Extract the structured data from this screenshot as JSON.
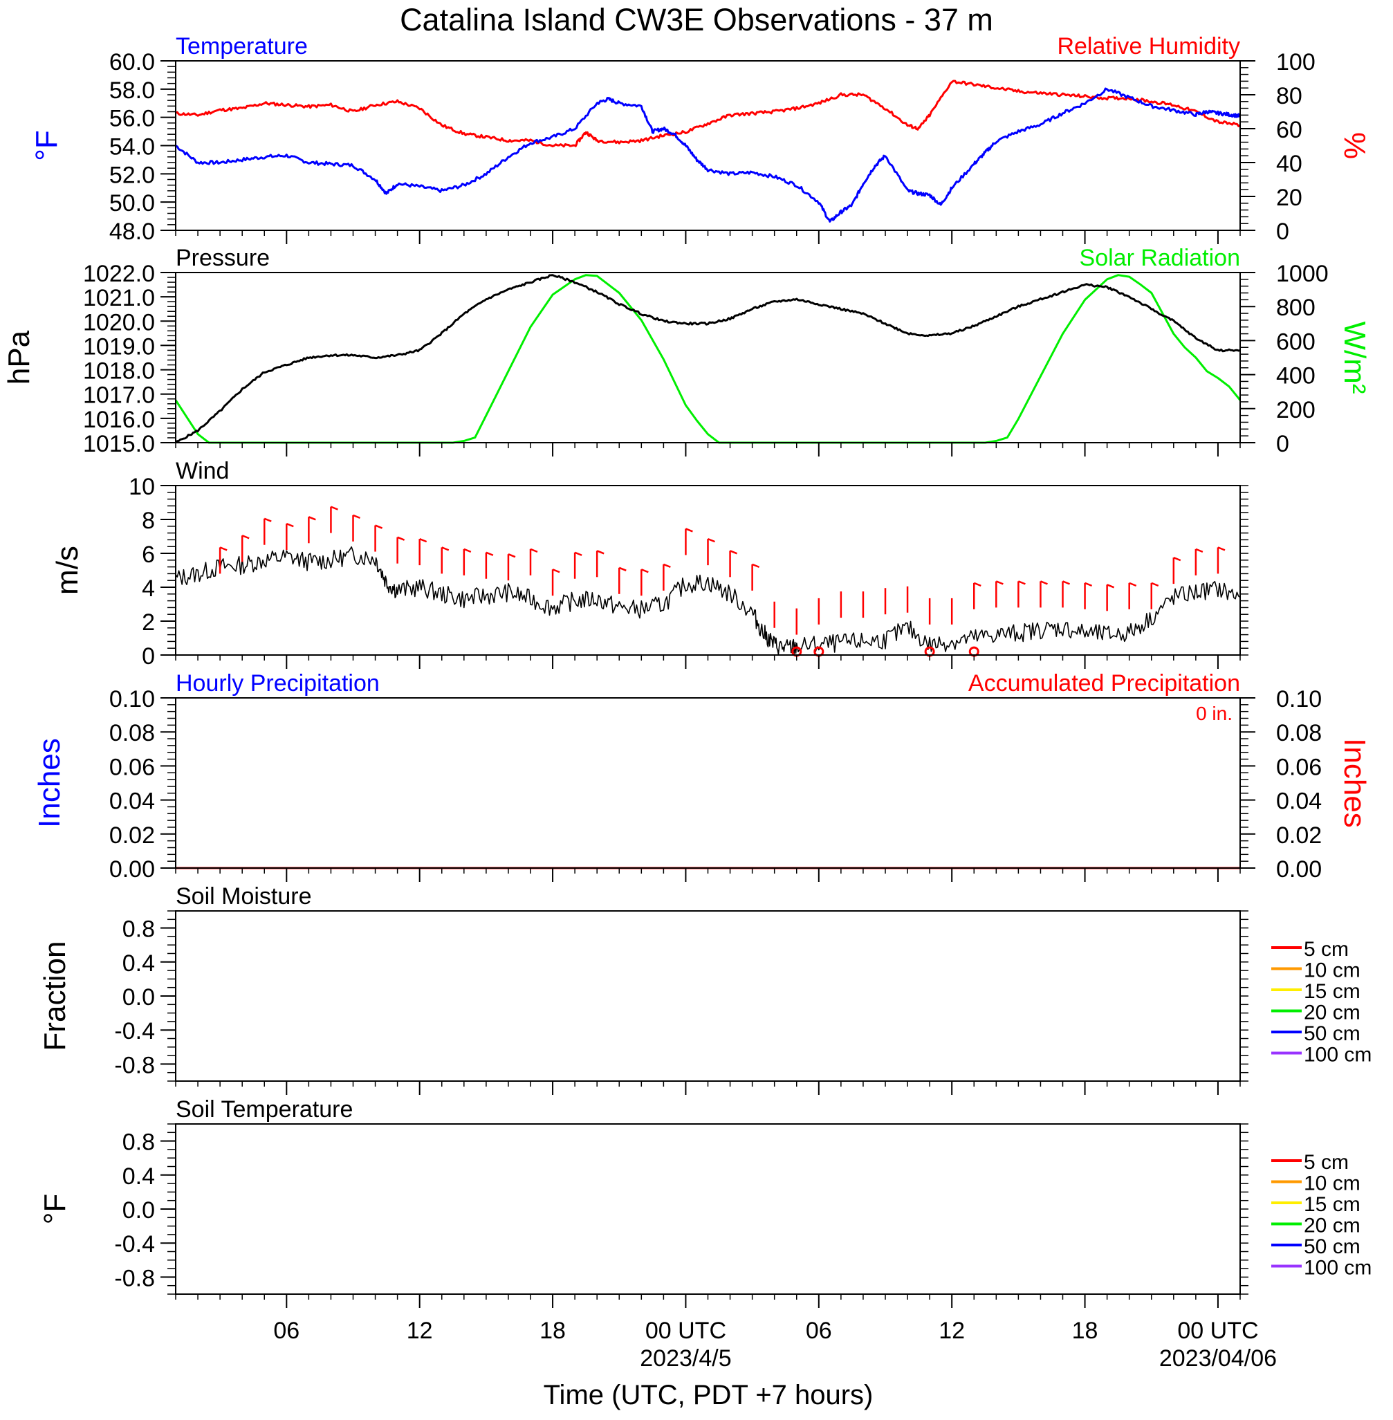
{
  "title": "Catalina Island CW3E Observations - 37 m",
  "x_axis": {
    "label": "Time (UTC, PDT +7 hours)",
    "range_hours": [
      0,
      48
    ],
    "ticks": [
      {
        "h": 5,
        "label": "06"
      },
      {
        "h": 11,
        "label": "12"
      },
      {
        "h": 17,
        "label": "18"
      },
      {
        "h": 23,
        "label": "00 UTC",
        "sub": "2023/4/5"
      },
      {
        "h": 29,
        "label": "06"
      },
      {
        "h": 35,
        "label": "12"
      },
      {
        "h": 41,
        "label": "18"
      },
      {
        "h": 47,
        "label": "00 UTC",
        "sub": "2023/04/06"
      }
    ]
  },
  "colors": {
    "temperature": "#0000ff",
    "humidity": "#ff0000",
    "pressure": "#000000",
    "solar": "#00ee00",
    "wind": "#000000",
    "barb": "#ff0000",
    "precip_hourly": "#0000ff",
    "precip_accum": "#ff0000"
  },
  "panels": {
    "temp_rh": {
      "title_left": "Temperature",
      "title_right": "Relative Humidity",
      "ylabel_left": "°F",
      "ylabel_right": "%",
      "left_ticks": [
        "48.0",
        "50.0",
        "52.0",
        "54.0",
        "56.0",
        "58.0",
        "60.0"
      ],
      "right_ticks": [
        "0",
        "20",
        "40",
        "60",
        "80",
        "100"
      ]
    },
    "pressure_solar": {
      "title_left": "Pressure",
      "title_right": "Solar Radiation",
      "ylabel_left": "hPa",
      "ylabel_right": "W/m²",
      "left_ticks": [
        "1015.0",
        "1016.0",
        "1017.0",
        "1018.0",
        "1019.0",
        "1020.0",
        "1021.0",
        "1022.0"
      ],
      "right_ticks": [
        "0",
        "200",
        "400",
        "600",
        "800",
        "1000"
      ]
    },
    "wind": {
      "title_left": "Wind",
      "ylabel_left": "m/s",
      "left_ticks": [
        "0",
        "2",
        "4",
        "6",
        "8",
        "10"
      ]
    },
    "precip": {
      "title_left": "Hourly Precipitation",
      "title_right": "Accumulated Precipitation",
      "ylabel_left": "Inches",
      "ylabel_right": "Inches",
      "accum_text": "0 in.",
      "left_ticks": [
        "0.00",
        "0.02",
        "0.04",
        "0.06",
        "0.08",
        "0.10"
      ],
      "right_ticks": [
        "0.00",
        "0.02",
        "0.04",
        "0.06",
        "0.08",
        "0.10"
      ]
    },
    "soil_moisture": {
      "title_left": "Soil Moisture",
      "ylabel_left": "Fraction",
      "left_ticks": [
        "-0.8",
        "-0.4",
        "0.0",
        "0.4",
        "0.8"
      ],
      "legend": [
        {
          "label": "5 cm",
          "color": "#ff0000"
        },
        {
          "label": "10 cm",
          "color": "#ff9900"
        },
        {
          "label": "15 cm",
          "color": "#ffee00"
        },
        {
          "label": "20 cm",
          "color": "#00ee00"
        },
        {
          "label": "50 cm",
          "color": "#0000ff"
        },
        {
          "label": "100 cm",
          "color": "#9933ff"
        }
      ]
    },
    "soil_temp": {
      "title_left": "Soil Temperature",
      "ylabel_left": "°F",
      "left_ticks": [
        "-0.8",
        "-0.4",
        "0.0",
        "0.4",
        "0.8"
      ],
      "legend": [
        {
          "label": "5 cm",
          "color": "#ff0000"
        },
        {
          "label": "10 cm",
          "color": "#ff9900"
        },
        {
          "label": "15 cm",
          "color": "#ffee00"
        },
        {
          "label": "20 cm",
          "color": "#00ee00"
        },
        {
          "label": "50 cm",
          "color": "#0000ff"
        },
        {
          "label": "100 cm",
          "color": "#9933ff"
        }
      ]
    }
  },
  "chart_data": [
    {
      "type": "line",
      "title": "Temperature",
      "ylabel": "°F",
      "ylim": [
        48,
        60
      ],
      "series": [
        {
          "name": "Temperature",
          "x": [
            0,
            1,
            2,
            3,
            4,
            5,
            6,
            7,
            8,
            9,
            9.5,
            10,
            11,
            12,
            13,
            14,
            15,
            16,
            17,
            18,
            19,
            19.5,
            20,
            21,
            21.5,
            22,
            22.5,
            23,
            23.5,
            24,
            25,
            26,
            27,
            28,
            29,
            29.5,
            30,
            30.5,
            31,
            31.5,
            32,
            33,
            33.5,
            34,
            34.5,
            35,
            36,
            36.5,
            37,
            38,
            39,
            40,
            41,
            42,
            43,
            44,
            45,
            46,
            46.5,
            47,
            47.5,
            48
          ],
          "values": [
            54.0,
            52.8,
            52.8,
            53.0,
            53.2,
            53.3,
            52.8,
            52.7,
            52.6,
            51.6,
            50.6,
            51.3,
            51.1,
            50.8,
            51.2,
            52.0,
            53.2,
            54.2,
            54.6,
            55.2,
            57.0,
            57.3,
            57.0,
            56.8,
            55.0,
            55.2,
            54.8,
            54.0,
            53.0,
            52.3,
            52.0,
            52.1,
            51.8,
            51.2,
            50.0,
            48.6,
            49.3,
            49.8,
            51.3,
            52.5,
            53.3,
            50.8,
            50.6,
            50.5,
            49.8,
            51.0,
            52.7,
            53.5,
            54.3,
            55.0,
            55.5,
            56.3,
            57.0,
            58.0,
            57.4,
            56.8,
            56.5,
            56.2,
            56.4,
            56.3,
            56.2,
            56.1
          ]
        }
      ]
    },
    {
      "type": "line",
      "title": "Relative Humidity",
      "ylabel": "%",
      "ylim": [
        0,
        100
      ],
      "series": [
        {
          "name": "Relative Humidity",
          "x": [
            0,
            1,
            2,
            3,
            4,
            5,
            6,
            7,
            8,
            9,
            10,
            11,
            12,
            13,
            14,
            15,
            16,
            17,
            18,
            18.5,
            19,
            20,
            21,
            22,
            23,
            24,
            25,
            26,
            27,
            28,
            29,
            30,
            31,
            32,
            33,
            33.5,
            34,
            35,
            36,
            37,
            38,
            39,
            40,
            41,
            42,
            43,
            44,
            45,
            46,
            47,
            48
          ],
          "values": [
            69,
            68,
            71,
            72,
            75,
            74,
            73,
            74,
            70,
            74,
            76,
            72,
            62,
            57,
            55,
            53,
            53,
            50,
            50,
            58,
            53,
            52,
            53,
            56,
            58,
            63,
            68,
            69,
            70,
            72,
            75,
            80,
            80,
            72,
            62,
            60,
            68,
            88,
            86,
            84,
            82,
            81,
            80,
            79,
            78,
            78,
            76,
            74,
            70,
            64,
            62
          ]
        }
      ]
    },
    {
      "type": "line",
      "title": "Pressure",
      "ylabel": "hPa",
      "ylim": [
        1015,
        1022
      ],
      "series": [
        {
          "name": "Pressure",
          "x": [
            0,
            1,
            2,
            3,
            4,
            5,
            6,
            7,
            8,
            9,
            10,
            11,
            12,
            13,
            14,
            15,
            16,
            17,
            18,
            19,
            20,
            21,
            22,
            23,
            24,
            25,
            26,
            27,
            28,
            29,
            30,
            31,
            32,
            33,
            34,
            35,
            36,
            37,
            38,
            39,
            40,
            41,
            42,
            43,
            44,
            45,
            46,
            47,
            48
          ],
          "values": [
            1015.0,
            1015.5,
            1016.3,
            1017.2,
            1017.9,
            1018.2,
            1018.5,
            1018.6,
            1018.6,
            1018.5,
            1018.6,
            1018.8,
            1019.5,
            1020.3,
            1020.9,
            1021.3,
            1021.6,
            1021.9,
            1021.6,
            1021.2,
            1020.7,
            1020.3,
            1020.0,
            1019.9,
            1019.9,
            1020.1,
            1020.5,
            1020.8,
            1020.9,
            1020.7,
            1020.5,
            1020.3,
            1019.9,
            1019.5,
            1019.4,
            1019.5,
            1019.8,
            1020.2,
            1020.6,
            1020.9,
            1021.2,
            1021.5,
            1021.4,
            1021.0,
            1020.5,
            1020.0,
            1019.3,
            1018.8,
            1018.8
          ]
        }
      ]
    },
    {
      "type": "line",
      "title": "Solar Radiation",
      "ylabel": "W/m²",
      "ylim": [
        0,
        1000
      ],
      "series": [
        {
          "name": "Solar Radiation",
          "x": [
            0,
            0.5,
            1,
            1.5,
            12.5,
            13,
            13.5,
            14,
            15,
            16,
            17,
            18,
            18.5,
            19,
            19.5,
            20,
            21,
            22,
            23,
            23.5,
            24,
            24.5,
            25,
            25.5,
            36.5,
            37,
            37.5,
            38,
            39,
            40,
            41,
            42,
            42.5,
            43,
            43.5,
            44,
            44.5,
            45,
            45.5,
            46,
            46.5,
            47,
            47.5,
            48
          ],
          "values": [
            250,
            150,
            50,
            0,
            0,
            10,
            30,
            160,
            420,
            680,
            870,
            960,
            985,
            980,
            930,
            880,
            720,
            490,
            220,
            130,
            50,
            0,
            0,
            0,
            0,
            10,
            30,
            140,
            390,
            640,
            840,
            960,
            985,
            975,
            930,
            880,
            760,
            640,
            560,
            500,
            420,
            380,
            330,
            250
          ]
        }
      ]
    },
    {
      "type": "line",
      "title": "Wind",
      "ylabel": "m/s",
      "ylim": [
        0,
        10
      ],
      "series": [
        {
          "name": "Wind",
          "x": [
            0,
            1,
            2,
            3,
            4,
            5,
            6,
            7,
            8,
            9,
            9.5,
            10,
            11,
            12,
            13,
            14,
            15,
            16,
            17,
            18,
            19,
            20,
            21,
            22,
            23,
            24,
            25,
            26,
            26.5,
            27,
            27.5,
            28,
            29,
            30,
            31,
            32,
            33,
            34,
            35,
            36,
            37,
            38,
            39,
            40,
            41,
            42,
            43,
            44,
            45,
            46,
            47,
            48
          ],
          "values": [
            4.5,
            4.8,
            5.2,
            5.3,
            5.6,
            5.8,
            5.5,
            5.6,
            5.9,
            5.7,
            4.3,
            3.8,
            4.0,
            3.6,
            3.3,
            3.5,
            3.7,
            3.3,
            2.8,
            3.2,
            3.3,
            2.8,
            2.7,
            3.0,
            4.2,
            4.3,
            3.6,
            2.5,
            1.3,
            0.6,
            0.4,
            0.5,
            0.6,
            0.7,
            0.8,
            0.9,
            1.6,
            0.6,
            0.8,
            1.0,
            1.2,
            1.3,
            1.5,
            1.6,
            1.3,
            1.2,
            1.3,
            2.2,
            3.4,
            3.7,
            3.9,
            3.4
          ]
        }
      ]
    },
    {
      "type": "line",
      "title": "Hourly Precipitation",
      "ylabel": "Inches",
      "ylim": [
        0,
        0.1
      ],
      "series": [
        {
          "name": "Hourly Precipitation",
          "x": [
            0,
            48
          ],
          "values": [
            0,
            0
          ]
        }
      ]
    },
    {
      "type": "line",
      "title": "Accumulated Precipitation",
      "ylabel": "Inches",
      "ylim": [
        0,
        0.1
      ],
      "series": [
        {
          "name": "Accumulated Precipitation",
          "x": [
            0,
            48
          ],
          "values": [
            0,
            0
          ]
        }
      ]
    },
    {
      "type": "line",
      "title": "Soil Moisture",
      "ylabel": "Fraction",
      "ylim": [
        -1,
        1
      ],
      "series": []
    },
    {
      "type": "line",
      "title": "Soil Temperature",
      "ylabel": "°F",
      "ylim": [
        -1,
        1
      ],
      "series": []
    }
  ],
  "wind_barbs": {
    "x": [
      2,
      3,
      4,
      5,
      6,
      7,
      8,
      9,
      10,
      11,
      12,
      13,
      14,
      15,
      16,
      17,
      18,
      19,
      20,
      21,
      22,
      23,
      24,
      25,
      26,
      27,
      28,
      29,
      30,
      31,
      32,
      33,
      34,
      35,
      36,
      37,
      38,
      39,
      40,
      41,
      42,
      43,
      44,
      45,
      46,
      47
    ],
    "speed": [
      4.8,
      5.5,
      6.5,
      6.2,
      6.6,
      7.2,
      6.7,
      6.1,
      5.4,
      5.3,
      4.8,
      4.7,
      4.5,
      4.4,
      4.7,
      3.5,
      4.5,
      4.6,
      3.6,
      3.5,
      3.8,
      5.9,
      5.3,
      4.6,
      3.8,
      1.6,
      1.2,
      1.8,
      2.2,
      2.2,
      2.4,
      2.5,
      1.8,
      1.8,
      2.7,
      2.8,
      2.8,
      2.8,
      2.8,
      2.7,
      2.6,
      2.7,
      2.7,
      4.2,
      4.7,
      4.8
    ],
    "calm_hours": [
      28,
      29,
      34,
      36
    ]
  }
}
